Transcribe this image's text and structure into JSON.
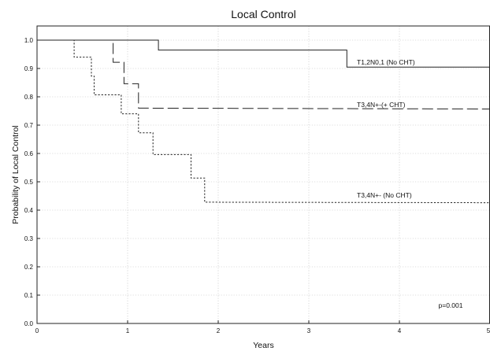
{
  "chart_data": {
    "type": "line",
    "title": "Local Control",
    "xlabel": "Years",
    "ylabel": "Probability of Local Control",
    "xlim": [
      0,
      5
    ],
    "ylim": [
      0,
      1.05
    ],
    "grid": true,
    "x_ticks": [
      0,
      1,
      2,
      3,
      4,
      5
    ],
    "x_tick_labels": [
      "0",
      "1",
      "2",
      "3",
      "4",
      "5"
    ],
    "y_ticks": [
      0,
      0.1,
      0.2,
      0.3,
      0.4,
      0.5,
      0.6,
      0.7,
      0.8,
      0.9,
      1.0
    ],
    "y_tick_labels": [
      "0.0",
      "0.1",
      "0.2",
      "0.3",
      "0.4",
      "0.5",
      "0.6",
      "0.7",
      "0.8",
      "0.9",
      "1.0"
    ],
    "series": [
      {
        "name": "T1,2N0,1 (No CHT)",
        "style": "solid",
        "color": "#222222",
        "x": [
          0,
          1.34,
          1.34,
          3.42,
          3.42,
          5.0
        ],
        "y": [
          1.0,
          1.0,
          0.965,
          0.965,
          0.905,
          0.905
        ]
      },
      {
        "name": "T3,4N+-(+ CHT)",
        "style": "dashed",
        "color": "#222222",
        "x": [
          0.84,
          0.84,
          0.96,
          0.96,
          1.12,
          1.12,
          5.0
        ],
        "y": [
          0.99,
          0.922,
          0.922,
          0.846,
          0.846,
          0.76,
          0.757
        ]
      },
      {
        "name": "T3,4N+- (No CHT)",
        "style": "dotted",
        "color": "#222222",
        "x": [
          0,
          0.41,
          0.41,
          0.6,
          0.6,
          0.63,
          0.63,
          0.93,
          0.93,
          1.12,
          1.12,
          1.28,
          1.28,
          1.7,
          1.7,
          1.85,
          1.85,
          5.0
        ],
        "y": [
          1.0,
          1.0,
          0.94,
          0.94,
          0.873,
          0.873,
          0.807,
          0.807,
          0.74,
          0.74,
          0.673,
          0.673,
          0.596,
          0.596,
          0.513,
          0.513,
          0.428,
          0.426
        ]
      }
    ],
    "annotation": "p=0.001"
  }
}
